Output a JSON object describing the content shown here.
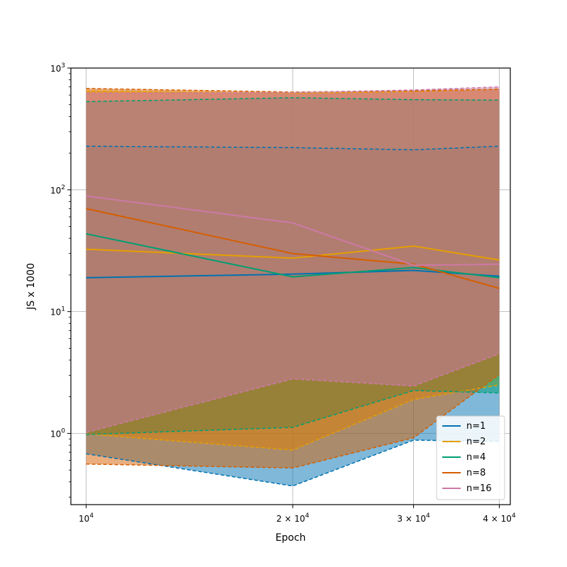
{
  "chart_data": {
    "type": "line",
    "xlabel": "Epoch",
    "ylabel": "JS x 1000",
    "xscale": "log",
    "yscale": "log",
    "xlim": [
      9500,
      41500
    ],
    "ylim": [
      0.26,
      1000
    ],
    "grid": "major",
    "legend_position": "lower right",
    "x": [
      10000,
      20000,
      30000,
      40000
    ],
    "x_ticks": [
      {
        "value": 10000,
        "base": "10",
        "exp": "4",
        "prefix": ""
      },
      {
        "value": 20000,
        "base": "10",
        "exp": "4",
        "prefix": "2 × "
      },
      {
        "value": 30000,
        "base": "10",
        "exp": "4",
        "prefix": "3 × "
      },
      {
        "value": 40000,
        "base": "10",
        "exp": "4",
        "prefix": "4 × "
      }
    ],
    "y_ticks": [
      {
        "value": 1,
        "base": "10",
        "exp": "0"
      },
      {
        "value": 10,
        "base": "10",
        "exp": "1"
      },
      {
        "value": 100,
        "base": "10",
        "exp": "2"
      },
      {
        "value": 1000,
        "base": "10",
        "exp": "3"
      }
    ],
    "series": [
      {
        "name": "n=1",
        "color": "#0072b2",
        "mean": [
          19,
          20.3,
          21.8,
          19.5
        ],
        "upper": [
          228,
          222,
          213,
          228
        ],
        "lower": [
          0.68,
          0.37,
          0.88,
          0.86
        ]
      },
      {
        "name": "n=2",
        "color": "#e69f00",
        "mean": [
          32.5,
          27.5,
          34.5,
          26.5
        ],
        "upper": [
          650,
          620,
          640,
          670
        ],
        "lower": [
          0.99,
          0.73,
          1.9,
          2.5
        ]
      },
      {
        "name": "n=4",
        "color": "#009e73",
        "mean": [
          43.5,
          19.3,
          23,
          19
        ],
        "upper": [
          530,
          570,
          550,
          545
        ],
        "lower": [
          0.98,
          1.12,
          2.25,
          2.15
        ]
      },
      {
        "name": "n=8",
        "color": "#d55e00",
        "mean": [
          70,
          30,
          24.5,
          15.5
        ],
        "upper": [
          680,
          635,
          650,
          670
        ],
        "lower": [
          0.56,
          0.52,
          0.92,
          3.05
        ]
      },
      {
        "name": "n=16",
        "color": "#cc79a7",
        "mean": [
          89,
          53.5,
          24,
          24.5
        ],
        "upper": [
          620,
          630,
          660,
          700
        ],
        "lower": [
          1.02,
          2.8,
          2.45,
          4.5
        ]
      }
    ]
  }
}
